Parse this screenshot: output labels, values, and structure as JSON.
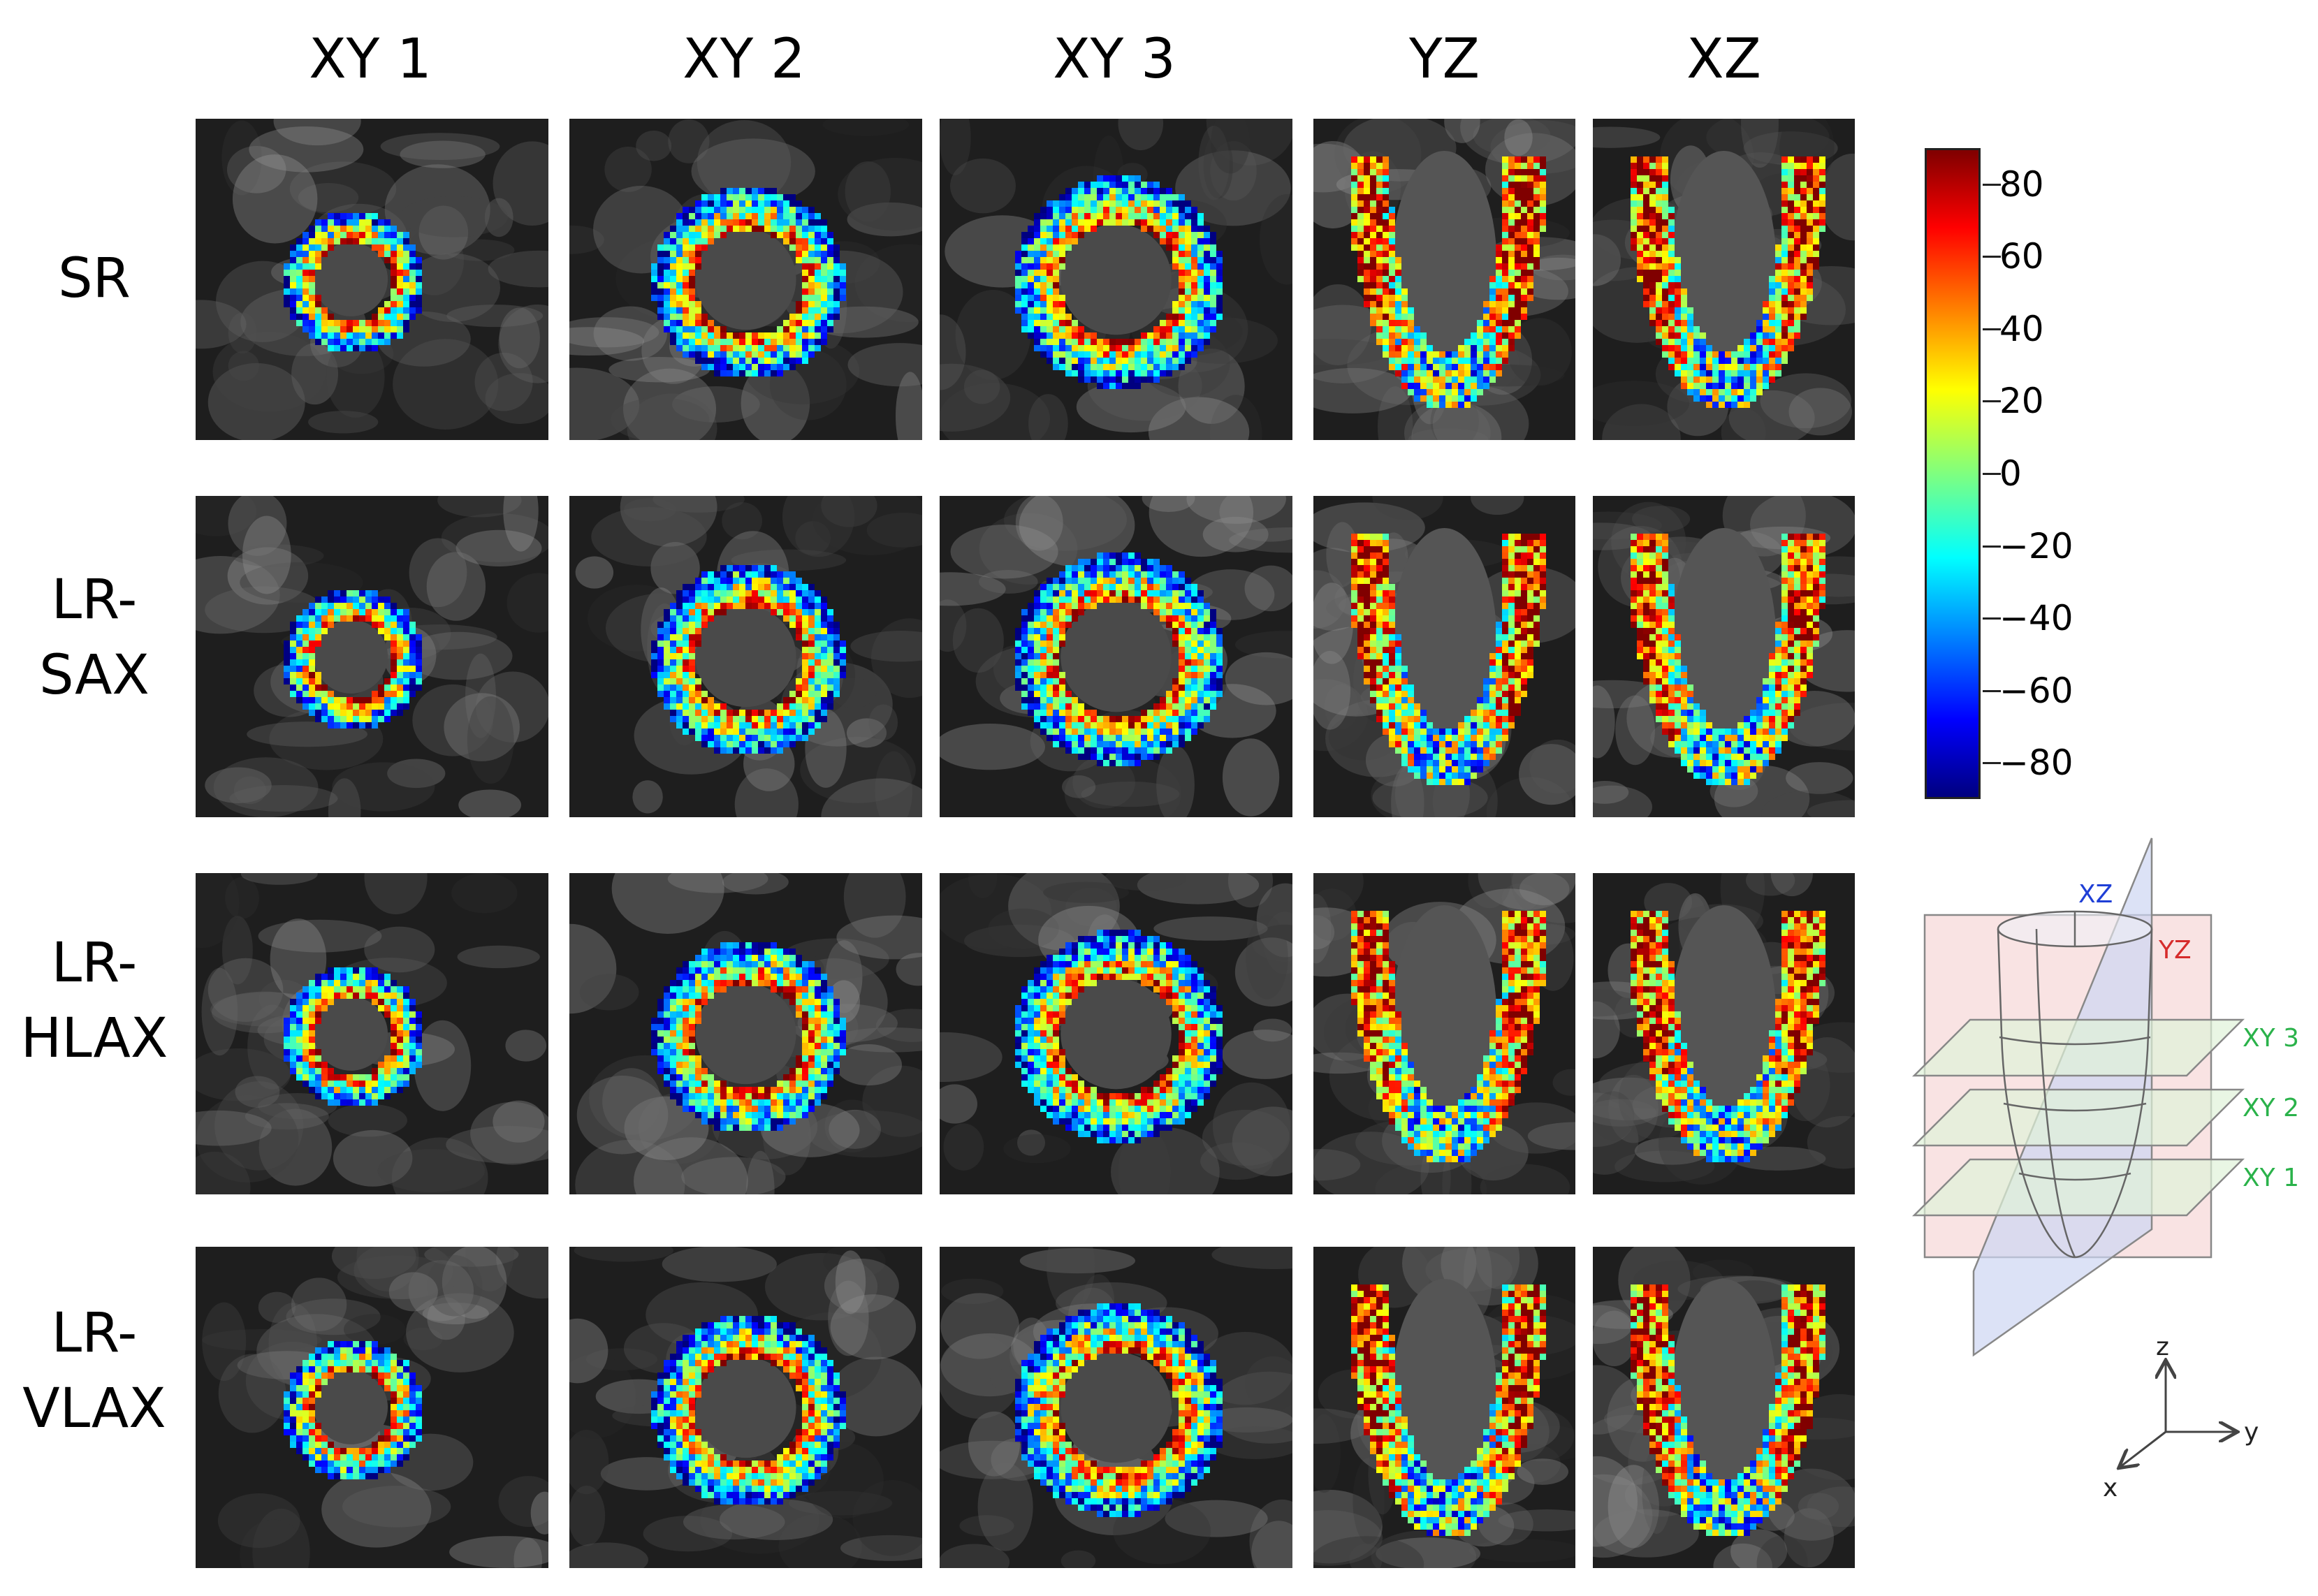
{
  "columns": [
    {
      "key": "xy1",
      "label": "XY 1"
    },
    {
      "key": "xy2",
      "label": "XY 2"
    },
    {
      "key": "xy3",
      "label": "XY 3"
    },
    {
      "key": "yz",
      "label": "YZ"
    },
    {
      "key": "xz",
      "label": "XZ"
    }
  ],
  "rows": [
    {
      "key": "sr",
      "label_lines": [
        "SR"
      ]
    },
    {
      "key": "lr-sax",
      "label_lines": [
        "LR-",
        "SAX"
      ]
    },
    {
      "key": "lr-hlax",
      "label_lines": [
        "LR-",
        "HLAX"
      ]
    },
    {
      "key": "lr-vlax",
      "label_lines": [
        "LR-",
        "VLAX"
      ]
    }
  ],
  "colorbar": {
    "ticks": [
      "80",
      "60",
      "40",
      "20",
      "0",
      "−20",
      "−40",
      "−60",
      "−80"
    ],
    "range": [
      -90,
      90
    ],
    "colormap": "jet"
  },
  "schematic": {
    "planes": [
      {
        "label": "XZ",
        "color": "#1f3fd6"
      },
      {
        "label": "YZ",
        "color": "#d62b2b"
      },
      {
        "label": "XY 3",
        "color": "#2ab24a"
      },
      {
        "label": "XY 2",
        "color": "#2ab24a"
      },
      {
        "label": "XY 1",
        "color": "#2ab24a"
      }
    ],
    "axes": {
      "z": "z",
      "y": "y",
      "x": "x"
    }
  }
}
